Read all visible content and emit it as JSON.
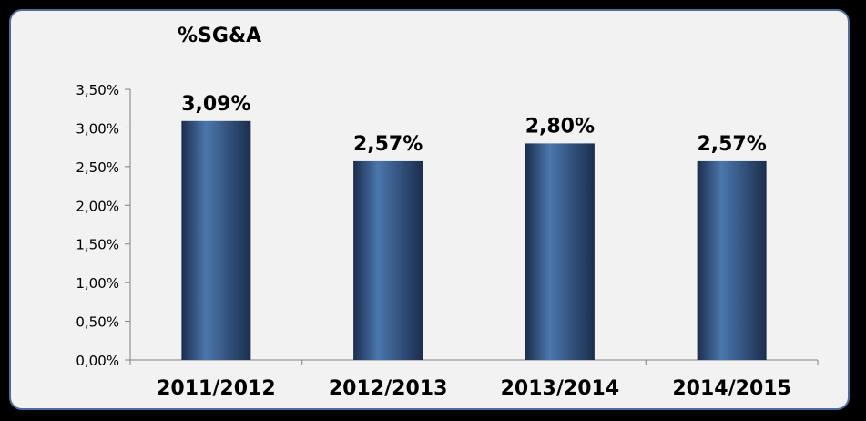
{
  "colors": {
    "background": "#000000",
    "panel": "#f2f2f2",
    "panel_border": "#4a6f9c",
    "bar_dark": "#1b2d4d",
    "bar_light": "#4b77ad"
  },
  "chart_data": {
    "type": "bar",
    "title": "%SG&A",
    "xlabel": "",
    "ylabel": "",
    "categories": [
      "2011/2012",
      "2012/2013",
      "2013/2014",
      "2014/2015"
    ],
    "values": [
      3.09,
      2.57,
      2.8,
      2.57
    ],
    "data_labels": [
      "3,09%",
      "2,57%",
      "2,80%",
      "2,57%"
    ],
    "ylim": [
      0,
      3.5
    ],
    "yticks": [
      0,
      0.5,
      1.0,
      1.5,
      2.0,
      2.5,
      3.0,
      3.5
    ],
    "ytick_labels": [
      "0,00%",
      "0,50%",
      "1,00%",
      "1,50%",
      "2,00%",
      "2,50%",
      "3,00%",
      "3,50%"
    ],
    "grid": false,
    "legend": "none"
  }
}
